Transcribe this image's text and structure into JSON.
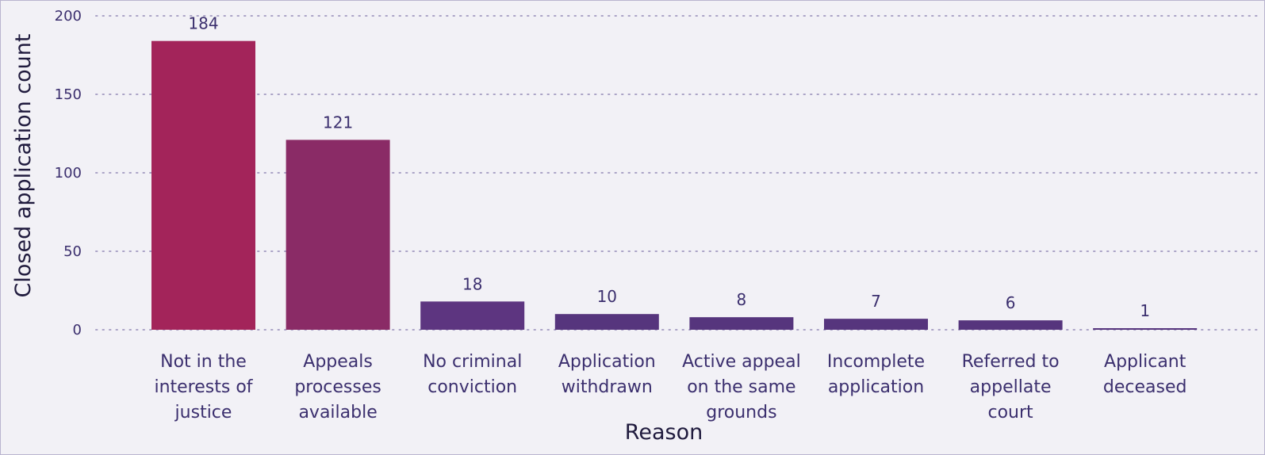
{
  "chart_data": {
    "type": "bar",
    "categories": [
      [
        "Not in the",
        "interests of",
        "justice"
      ],
      [
        "Appeals",
        "processes",
        "available"
      ],
      [
        "No criminal",
        "conviction"
      ],
      [
        "Application",
        "withdrawn"
      ],
      [
        "Active appeal",
        "on the same",
        "grounds"
      ],
      [
        "Incomplete",
        "application"
      ],
      [
        "Referred to",
        "appellate",
        "court"
      ],
      [
        "Applicant",
        "deceased"
      ]
    ],
    "values": [
      184,
      121,
      18,
      10,
      8,
      7,
      6,
      1
    ],
    "data_labels": [
      "184",
      "121",
      "18",
      "10",
      "8",
      "7",
      "6",
      "1"
    ],
    "colors": [
      "#a3245a",
      "#8a2b66",
      "#5d3580",
      "#56357d",
      "#56357d",
      "#56357d",
      "#56357d",
      "#56357d"
    ],
    "title": "",
    "xlabel": "Reason",
    "ylabel": "Closed application count",
    "ylim": [
      0,
      200
    ],
    "yticks": [
      0,
      50,
      100,
      150,
      200
    ],
    "ytick_labels": [
      "0",
      "50",
      "100",
      "150",
      "200"
    ],
    "grid": true,
    "legend": "none"
  }
}
